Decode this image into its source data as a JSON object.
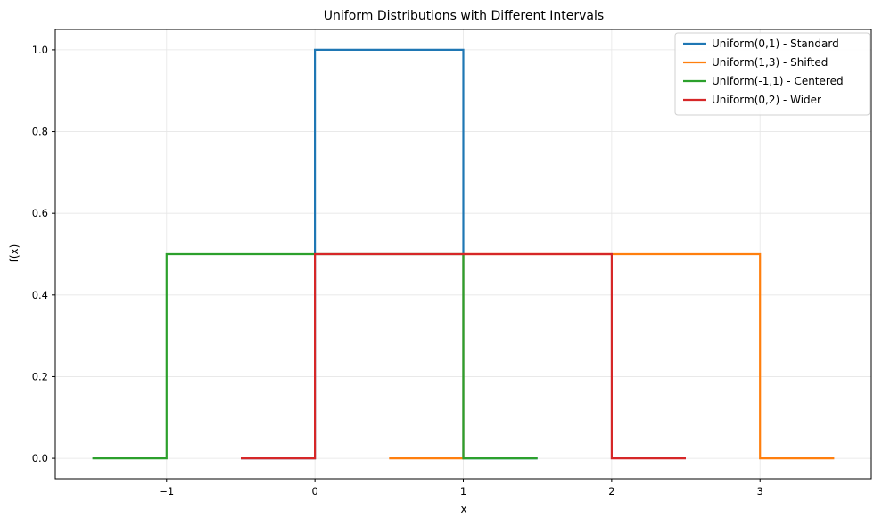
{
  "chart_data": {
    "type": "line",
    "title": "Uniform Distributions with Different Intervals",
    "xlabel": "x",
    "ylabel": "f(x)",
    "xlim": [
      -1.75,
      3.75
    ],
    "ylim": [
      -0.05,
      1.05
    ],
    "xticks": [
      -1,
      0,
      1,
      2,
      3
    ],
    "xtick_labels": [
      "−1",
      "0",
      "1",
      "2",
      "3"
    ],
    "yticks": [
      0.0,
      0.2,
      0.4,
      0.6,
      0.8,
      1.0
    ],
    "ytick_labels": [
      "0.0",
      "0.2",
      "0.4",
      "0.6",
      "0.8",
      "1.0"
    ],
    "grid": true,
    "legend_position": "top-right",
    "series": [
      {
        "name": "Uniform(0,1) - Standard",
        "color": "#1f77b4",
        "points": [
          [
            -0.5,
            0
          ],
          [
            0,
            0
          ],
          [
            0,
            1
          ],
          [
            1,
            1
          ],
          [
            1,
            0
          ],
          [
            1.5,
            0
          ]
        ]
      },
      {
        "name": "Uniform(1,3) - Shifted",
        "color": "#ff7f0e",
        "points": [
          [
            0.5,
            0
          ],
          [
            1,
            0
          ],
          [
            1,
            0.5
          ],
          [
            3,
            0.5
          ],
          [
            3,
            0
          ],
          [
            3.5,
            0
          ]
        ]
      },
      {
        "name": "Uniform(-1,1) - Centered",
        "color": "#2ca02c",
        "points": [
          [
            -1.5,
            0
          ],
          [
            -1,
            0
          ],
          [
            -1,
            0.5
          ],
          [
            1,
            0.5
          ],
          [
            1,
            0
          ],
          [
            1.5,
            0
          ]
        ]
      },
      {
        "name": "Uniform(0,2) - Wider",
        "color": "#d62728",
        "points": [
          [
            -0.5,
            0
          ],
          [
            0,
            0
          ],
          [
            0,
            0.5
          ],
          [
            2,
            0.5
          ],
          [
            2,
            0
          ],
          [
            2.5,
            0
          ]
        ]
      }
    ]
  }
}
